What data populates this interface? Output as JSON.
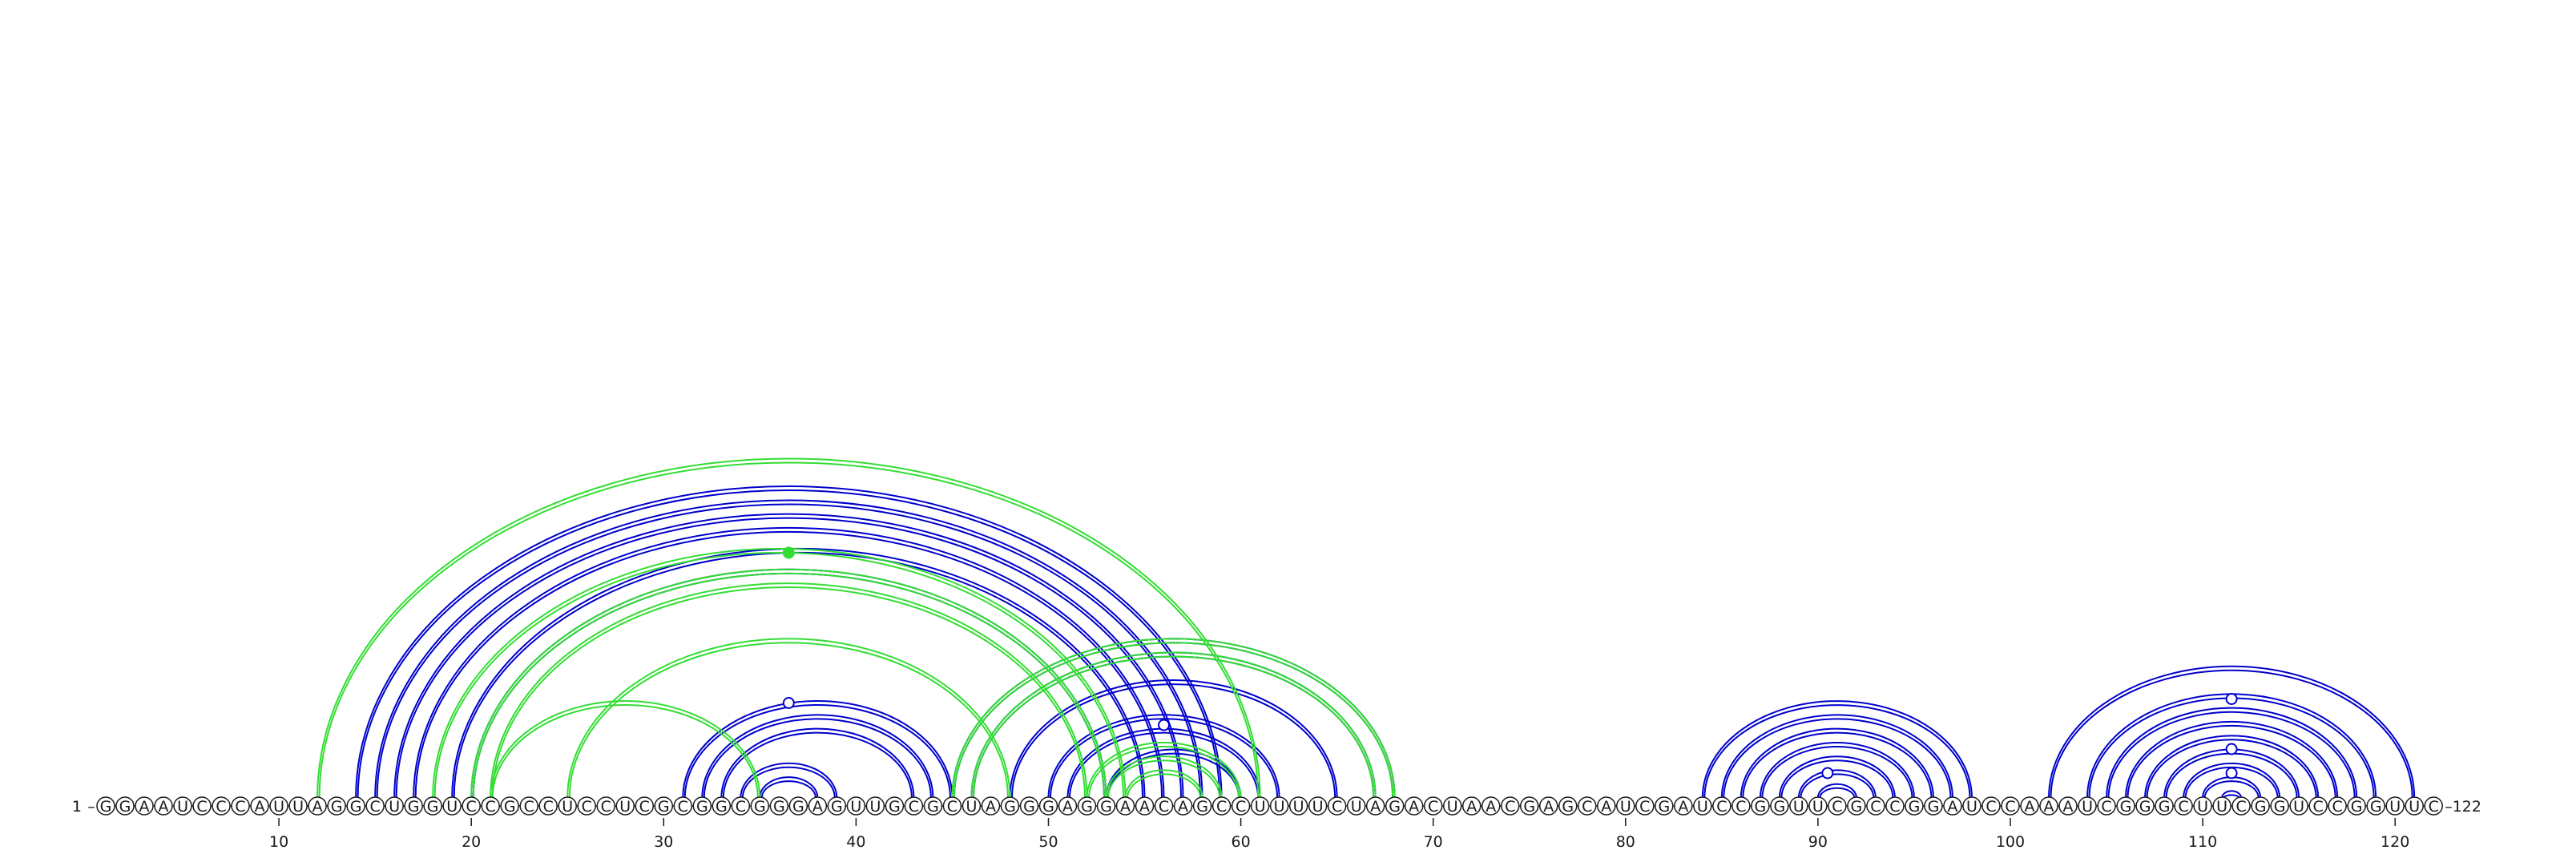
{
  "sequence": "GGAAUCCCAUUAGGCUGGUCCGCCUCCUCGCGGCGGGAGUUGCGCUAGGGAGGAACAGCCUUUUCUAGACUAACGAGCAUCGAUCCGGUUCGCCGGAUCCAAAUCGGGCUUCGGUCCGGUUC",
  "start_label": "1",
  "end_label": "122",
  "ticks": [
    {
      "pos": 10,
      "label": "10"
    },
    {
      "pos": 20,
      "label": "20"
    },
    {
      "pos": 30,
      "label": "30"
    },
    {
      "pos": 40,
      "label": "40"
    },
    {
      "pos": 50,
      "label": "50"
    },
    {
      "pos": 60,
      "label": "60"
    },
    {
      "pos": 70,
      "label": "70"
    },
    {
      "pos": 80,
      "label": "80"
    },
    {
      "pos": 90,
      "label": "90"
    },
    {
      "pos": 100,
      "label": "100"
    },
    {
      "pos": 110,
      "label": "110"
    },
    {
      "pos": 120,
      "label": "120"
    }
  ],
  "colors": {
    "blue": "#0000cc",
    "green": "#33dd33",
    "text": "#1a1a1a",
    "circle_fill": "#ffffff"
  },
  "pairs": [
    {
      "i": 14,
      "j": 59,
      "set": "blue"
    },
    {
      "i": 15,
      "j": 58,
      "set": "blue"
    },
    {
      "i": 16,
      "j": 57,
      "set": "blue"
    },
    {
      "i": 17,
      "j": 56,
      "set": "blue"
    },
    {
      "i": 19,
      "j": 55,
      "set": "blue"
    },
    {
      "i": 20,
      "j": 53,
      "set": "blue"
    },
    {
      "i": 31,
      "j": 45,
      "set": "blue"
    },
    {
      "i": 32,
      "j": 44,
      "set": "blue"
    },
    {
      "i": 33,
      "j": 43,
      "set": "blue"
    },
    {
      "i": 34,
      "j": 39,
      "set": "blue"
    },
    {
      "i": 35,
      "j": 38,
      "set": "blue"
    },
    {
      "i": 45,
      "j": 68,
      "set": "blue"
    },
    {
      "i": 46,
      "j": 67,
      "set": "blue"
    },
    {
      "i": 48,
      "j": 65,
      "set": "blue"
    },
    {
      "i": 50,
      "j": 62,
      "set": "blue"
    },
    {
      "i": 51,
      "j": 61,
      "set": "blue"
    },
    {
      "i": 53,
      "j": 60,
      "set": "blue"
    },
    {
      "i": 84,
      "j": 98,
      "set": "blue"
    },
    {
      "i": 85,
      "j": 97,
      "set": "blue"
    },
    {
      "i": 86,
      "j": 96,
      "set": "blue"
    },
    {
      "i": 87,
      "j": 95,
      "set": "blue"
    },
    {
      "i": 88,
      "j": 94,
      "set": "blue"
    },
    {
      "i": 89,
      "j": 93,
      "set": "blue"
    },
    {
      "i": 90,
      "j": 92,
      "set": "blue"
    },
    {
      "i": 102,
      "j": 121,
      "set": "blue"
    },
    {
      "i": 104,
      "j": 119,
      "set": "blue"
    },
    {
      "i": 105,
      "j": 118,
      "set": "blue"
    },
    {
      "i": 106,
      "j": 117,
      "set": "blue"
    },
    {
      "i": 107,
      "j": 116,
      "set": "blue"
    },
    {
      "i": 108,
      "j": 115,
      "set": "blue"
    },
    {
      "i": 109,
      "j": 114,
      "set": "blue"
    },
    {
      "i": 110,
      "j": 113,
      "set": "blue"
    },
    {
      "i": 111,
      "j": 112,
      "set": "blue"
    },
    {
      "i": 12,
      "j": 61,
      "set": "green"
    },
    {
      "i": 18,
      "j": 54,
      "set": "green"
    },
    {
      "i": 20,
      "j": 53,
      "set": "green"
    },
    {
      "i": 21,
      "j": 52,
      "set": "green"
    },
    {
      "i": 21,
      "j": 35,
      "set": "green"
    },
    {
      "i": 25,
      "j": 48,
      "set": "green"
    },
    {
      "i": 45,
      "j": 68,
      "set": "green"
    },
    {
      "i": 46,
      "j": 67,
      "set": "green"
    },
    {
      "i": 52,
      "j": 60,
      "set": "green"
    },
    {
      "i": 53,
      "j": 59,
      "set": "green"
    },
    {
      "i": 54,
      "j": 58,
      "set": "green"
    }
  ],
  "markers": [
    {
      "pos": 36.5,
      "level": 0.235,
      "set": "blue"
    },
    {
      "pos": 56,
      "level": 0.18,
      "set": "blue"
    },
    {
      "pos": 90.5,
      "level": 0.06,
      "set": "blue"
    },
    {
      "pos": 111.5,
      "level": 0.245,
      "set": "blue"
    },
    {
      "pos": 111.5,
      "level": 0.12,
      "set": "blue"
    },
    {
      "pos": 111.5,
      "level": 0.06,
      "set": "blue"
    },
    {
      "pos": 36.5,
      "level": 0.61,
      "set": "green"
    }
  ]
}
